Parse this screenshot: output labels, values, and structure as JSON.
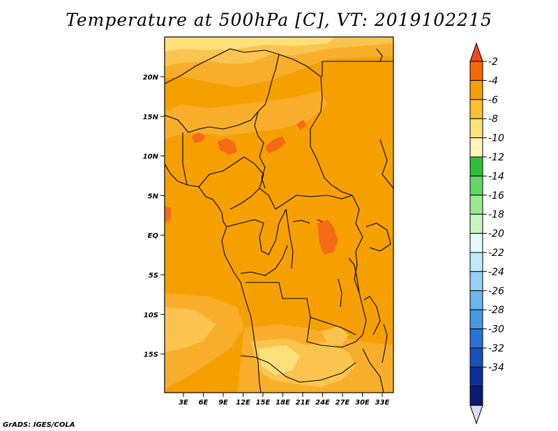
{
  "title": "Temperature at 500hPa [C], VT: 2019102215",
  "credit": "GrADS: IGES/COLA",
  "map": {
    "lat_labels": [
      "20N",
      "15N",
      "10N",
      "5N",
      "EQ",
      "5S",
      "10S",
      "15S"
    ],
    "lon_labels": [
      "3E",
      "6E",
      "9E",
      "12E",
      "15E",
      "18E",
      "21E",
      "24E",
      "27E",
      "30E",
      "33E"
    ],
    "shading_colors": {
      "deep_orange": "#f5a000",
      "mid_orange": "#f8ae2a",
      "light_orange": "#fac44f",
      "pale_yellow": "#fde07a",
      "warm_patch": "#f56a17"
    }
  },
  "colorbar": {
    "labels": [
      "-2",
      "-4",
      "-6",
      "-8",
      "-10",
      "-12",
      "-14",
      "-16",
      "-18",
      "-20",
      "-22",
      "-24",
      "-26",
      "-28",
      "-30",
      "-32",
      "-34"
    ],
    "colors": [
      "#f04a1a",
      "#f56a00",
      "#f7a100",
      "#fac030",
      "#fde27a",
      "#fff4b8",
      "#2ebf3a",
      "#62d767",
      "#9de98f",
      "#c7f5c2",
      "#e6fbf9",
      "#bdeaf7",
      "#96d1f5",
      "#6db6f0",
      "#4797e6",
      "#2a72d8",
      "#1b4fb9",
      "#0e2e9a",
      "#0b1a72",
      "#dcdcf6"
    ]
  }
}
